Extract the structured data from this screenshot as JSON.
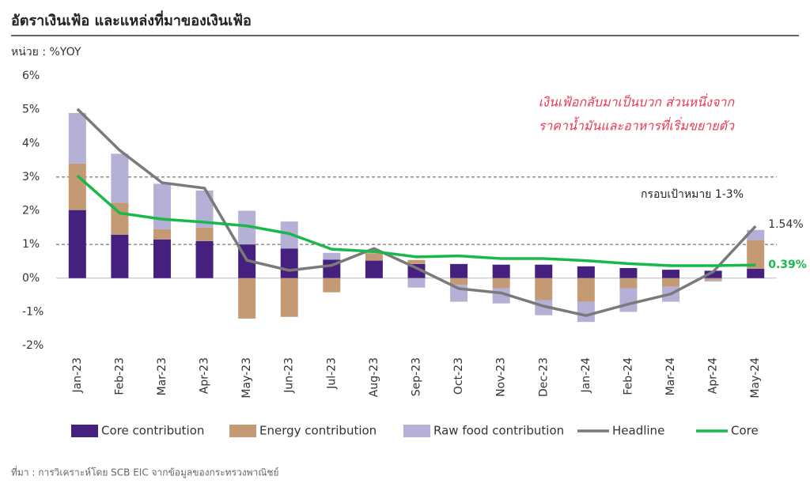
{
  "chart_data": {
    "type": "stacked_bar_line",
    "title": "อัตราเงินเฟ้อ และแหล่งที่มาของเงินเฟ้อ",
    "unit_label": "หน่วย : %YOY",
    "source": "ที่มา : การวิเคราะห์โดย SCB EIC จากข้อมูลของกระทรวงพาณิชย์",
    "annotations": [
      "เงินเฟ้อกลับมาเป็นบวก ส่วนหนึ่งจาก",
      "ราคาน้ำมันและอาหารที่เริ่มขยายตัว",
      "กรอบเป้าหมาย 1-3%"
    ],
    "reference_lines": [
      1,
      3
    ],
    "categories": [
      "Jan-23",
      "Feb-23",
      "Mar-23",
      "Apr-23",
      "May-23",
      "Jun-23",
      "Jul-23",
      "Aug-23",
      "Sep-23",
      "Oct-23",
      "Nov-23",
      "Dec-23",
      "Jan-24",
      "Feb-24",
      "Mar-24",
      "Apr-24",
      "May-24"
    ],
    "ylim": [
      -2,
      6
    ],
    "yticks": [
      {
        "value": -2,
        "label": "-2%"
      },
      {
        "value": -1,
        "label": "-1%"
      },
      {
        "value": 0,
        "label": "0%"
      },
      {
        "value": 1,
        "label": "1%"
      },
      {
        "value": 2,
        "label": "2%"
      },
      {
        "value": 3,
        "label": "3%"
      },
      {
        "value": 4,
        "label": "4%"
      },
      {
        "value": 5,
        "label": "5%"
      },
      {
        "value": 6,
        "label": "6%"
      }
    ],
    "series": [
      {
        "name": "Core contribution",
        "kind": "bar",
        "color": "#45207f",
        "values": [
          2.02,
          1.29,
          1.15,
          1.1,
          1.0,
          0.88,
          0.55,
          0.52,
          0.42,
          0.42,
          0.4,
          0.4,
          0.35,
          0.3,
          0.25,
          0.22,
          0.28
        ]
      },
      {
        "name": "Energy contribution",
        "kind": "bar",
        "color": "#c49a74",
        "values": [
          1.38,
          0.95,
          0.3,
          0.4,
          -1.2,
          -1.15,
          -0.42,
          0.22,
          0.12,
          -0.2,
          -0.3,
          -0.65,
          -0.7,
          -0.3,
          -0.25,
          -0.05,
          0.85
        ]
      },
      {
        "name": "Raw food contribution",
        "kind": "bar",
        "color": "#b4b0d6",
        "values": [
          1.5,
          1.45,
          1.35,
          1.1,
          1.0,
          0.8,
          0.2,
          0.05,
          -0.28,
          -0.5,
          -0.45,
          -0.45,
          -0.6,
          -0.7,
          -0.45,
          -0.05,
          0.3
        ]
      },
      {
        "name": "Headline",
        "kind": "line",
        "color": "#7a7a7a",
        "values": [
          5.02,
          3.79,
          2.83,
          2.67,
          0.53,
          0.23,
          0.38,
          0.88,
          0.3,
          -0.31,
          -0.44,
          -0.83,
          -1.11,
          -0.77,
          -0.47,
          0.19,
          1.54
        ],
        "value_labels": [
          null,
          null,
          null,
          null,
          null,
          null,
          null,
          null,
          null,
          null,
          null,
          null,
          null,
          null,
          null,
          null,
          "1.54%"
        ]
      },
      {
        "name": "Core",
        "kind": "line",
        "color": "#19b84a",
        "values": [
          3.04,
          1.93,
          1.75,
          1.66,
          1.55,
          1.32,
          0.86,
          0.79,
          0.63,
          0.66,
          0.58,
          0.58,
          0.52,
          0.43,
          0.37,
          0.37,
          0.39
        ],
        "value_labels": [
          null,
          null,
          null,
          null,
          null,
          null,
          null,
          null,
          null,
          null,
          null,
          null,
          null,
          null,
          null,
          null,
          "0.39%"
        ]
      }
    ]
  }
}
